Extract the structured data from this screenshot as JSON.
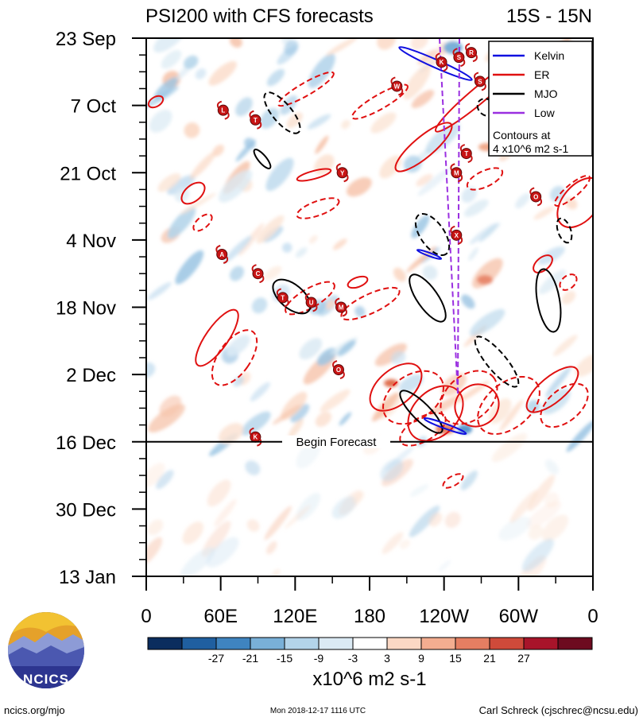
{
  "chart_data": {
    "type": "heatmap",
    "title": "PSI200 with CFS forecasts",
    "subtitle": "15S - 15N",
    "x_ticks": [
      "0",
      "60E",
      "120E",
      "180",
      "120W",
      "60W",
      "0"
    ],
    "y_ticks": [
      "23 Sep",
      "7 Oct",
      "21 Oct",
      "4 Nov",
      "18 Nov",
      "2 Dec",
      "16 Dec",
      "30 Dec",
      "13 Jan"
    ],
    "xlim": [
      0,
      360
    ],
    "ylim": [
      "2018-09-23",
      "2019-01-13"
    ],
    "grid": false,
    "forecast_marker": {
      "date": "2018-12-16",
      "label": "Begin Forecast"
    },
    "legend": {
      "placement": "top-right",
      "entries": [
        {
          "name": "Kelvin",
          "color": "#1010e0"
        },
        {
          "name": "ER",
          "color": "#e01010"
        },
        {
          "name": "MJO",
          "color": "#000000"
        },
        {
          "name": "Low",
          "color": "#9a2fe0"
        }
      ],
      "contour_note_1": "Contours at",
      "contour_note_2": "4 x10^6 m2 s-1"
    },
    "colorbar": {
      "levels": [
        "-27",
        "-21",
        "-15",
        "-9",
        "-3",
        "3",
        "9",
        "15",
        "21",
        "27"
      ],
      "colors": [
        "#0b2d5e",
        "#1f5fa0",
        "#3f84c0",
        "#79b0d8",
        "#b3d4ea",
        "#dbeaf4",
        "#ffffff",
        "#fbd8c4",
        "#f3ad90",
        "#e57e62",
        "#cf4a3a",
        "#a8142a",
        "#6d0b1f"
      ],
      "unit_label": "x10^6 m2 s-1"
    },
    "storms": [
      {
        "letter": "R",
        "lon": 262,
        "date": "2018-09-26"
      },
      {
        "letter": "S",
        "lon": 252,
        "date": "2018-09-27"
      },
      {
        "letter": "K",
        "lon": 238,
        "date": "2018-09-28"
      },
      {
        "letter": "S",
        "lon": 269,
        "date": "2018-10-02"
      },
      {
        "letter": "W",
        "lon": 202,
        "date": "2018-10-03"
      },
      {
        "letter": "L",
        "lon": 62,
        "date": "2018-10-08"
      },
      {
        "letter": "T",
        "lon": 88,
        "date": "2018-10-10"
      },
      {
        "letter": "T",
        "lon": 258,
        "date": "2018-10-17"
      },
      {
        "letter": "M",
        "lon": 250,
        "date": "2018-10-21"
      },
      {
        "letter": "Y",
        "lon": 158,
        "date": "2018-10-21"
      },
      {
        "letter": "O",
        "lon": 314,
        "date": "2018-10-26"
      },
      {
        "letter": "X",
        "lon": 250,
        "date": "2018-11-03"
      },
      {
        "letter": "A",
        "lon": 61,
        "date": "2018-11-07"
      },
      {
        "letter": "C",
        "lon": 90,
        "date": "2018-11-11"
      },
      {
        "letter": "T",
        "lon": 110,
        "date": "2018-11-16"
      },
      {
        "letter": "U",
        "lon": 133,
        "date": "2018-11-17"
      },
      {
        "letter": "M",
        "lon": 157,
        "date": "2018-11-18"
      },
      {
        "letter": "O",
        "lon": 155,
        "date": "2018-12-01"
      },
      {
        "letter": "K",
        "lon": 88,
        "date": "2018-12-15"
      }
    ]
  },
  "footer": {
    "logo_text": "NCICS",
    "site": "ncics.org/mjo",
    "timestamp": "Mon 2018-12-17 1116 UTC",
    "author": "Carl Schreck (cjschrec@ncsu.edu)"
  }
}
